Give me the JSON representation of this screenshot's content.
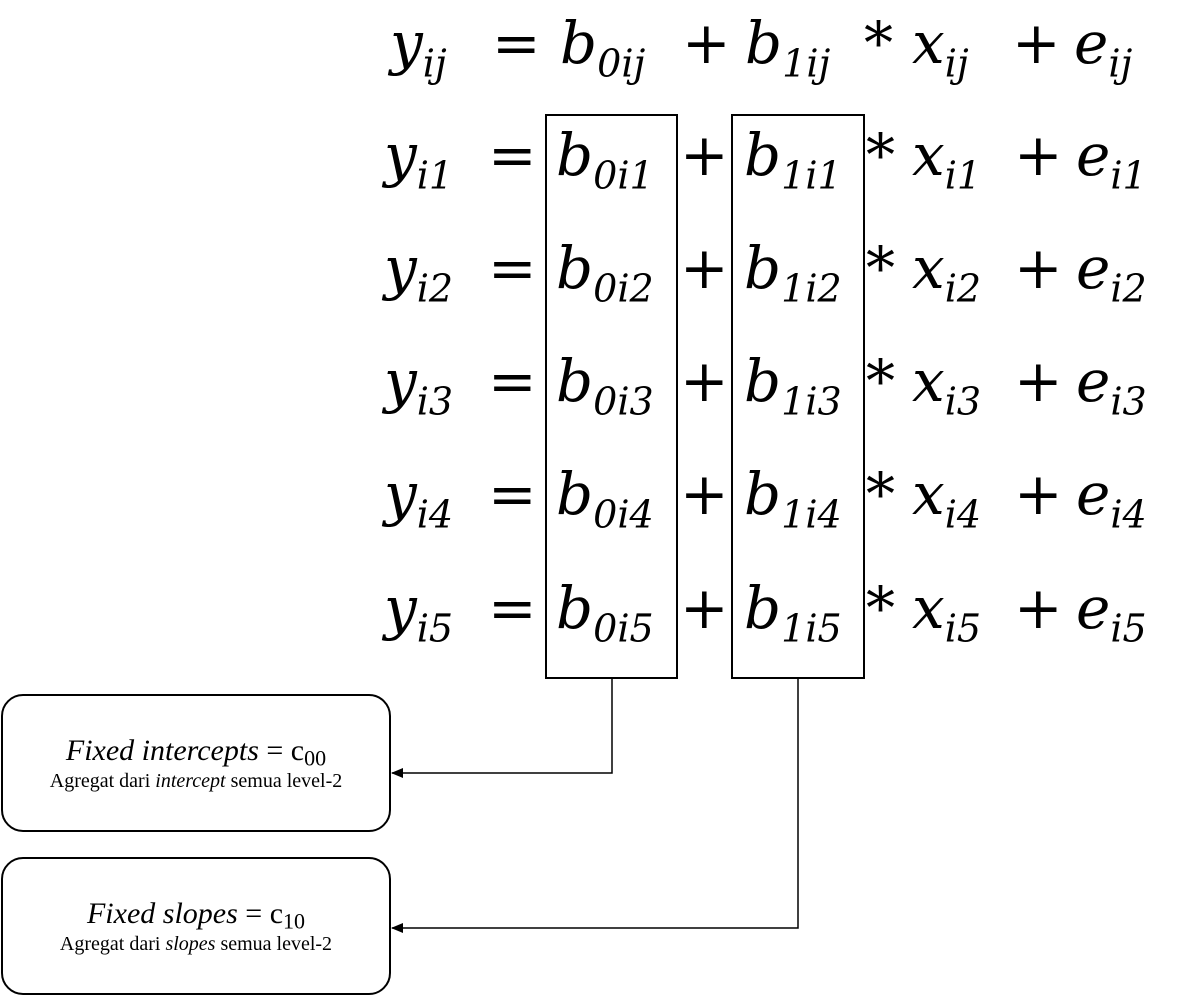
{
  "general_equation": {
    "y": "y",
    "y_sub": "ij",
    "eq": "=",
    "b0": "b",
    "b0_sub": "0ij",
    "plus1": "+",
    "b1": "b",
    "b1_sub": "1ij",
    "times": "*",
    "x": "x",
    "x_sub": "ij",
    "plus2": "+",
    "e": "e",
    "e_sub": "ij"
  },
  "rows": [
    {
      "y": "y",
      "y_sub": "i1",
      "eq": "=",
      "b0": "b",
      "b0_sub": "0i1",
      "plus1": "+",
      "b1": "b",
      "b1_sub": "1i1",
      "times": "*",
      "x": "x",
      "x_sub": "i1",
      "plus2": "+",
      "e": "e",
      "e_sub": "i1"
    },
    {
      "y": "y",
      "y_sub": "i2",
      "eq": "=",
      "b0": "b",
      "b0_sub": "0i2",
      "plus1": "+",
      "b1": "b",
      "b1_sub": "1i2",
      "times": "*",
      "x": "x",
      "x_sub": "i2",
      "plus2": "+",
      "e": "e",
      "e_sub": "i2"
    },
    {
      "y": "y",
      "y_sub": "i3",
      "eq": "=",
      "b0": "b",
      "b0_sub": "0i3",
      "plus1": "+",
      "b1": "b",
      "b1_sub": "1i3",
      "times": "*",
      "x": "x",
      "x_sub": "i3",
      "plus2": "+",
      "e": "e",
      "e_sub": "i3"
    },
    {
      "y": "y",
      "y_sub": "i4",
      "eq": "=",
      "b0": "b",
      "b0_sub": "0i4",
      "plus1": "+",
      "b1": "b",
      "b1_sub": "1i4",
      "times": "*",
      "x": "x",
      "x_sub": "i4",
      "plus2": "+",
      "e": "e",
      "e_sub": "i4"
    },
    {
      "y": "y",
      "y_sub": "i5",
      "eq": "=",
      "b0": "b",
      "b0_sub": "0i5",
      "plus1": "+",
      "b1": "b",
      "b1_sub": "1i5",
      "times": "*",
      "x": "x",
      "x_sub": "i5",
      "plus2": "+",
      "e": "e",
      "e_sub": "i5"
    }
  ],
  "callouts": {
    "intercepts": {
      "title_italic": "Fixed intercepts",
      "title_rest": " = c",
      "title_sub": "00",
      "desc_pre": "Agregat dari ",
      "desc_italic": "intercept",
      "desc_post": " semua level-2"
    },
    "slopes": {
      "title_italic": "Fixed slopes",
      "title_rest": " = c",
      "title_sub": "10",
      "desc_pre": "Agregat dari ",
      "desc_italic": "slopes",
      "desc_post": " semua level-2"
    }
  }
}
